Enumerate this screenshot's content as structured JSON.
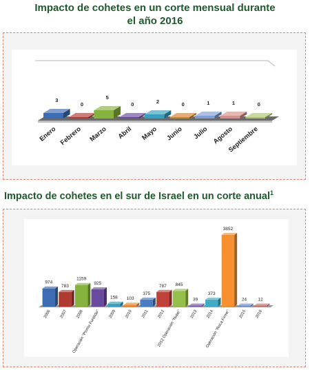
{
  "titles": {
    "monthly": "Impacto de cohetes en un corte mensual durante el año 2016",
    "monthly_line1": "Impacto de cohetes en un corte mensual durante",
    "monthly_line2": "el año 2016",
    "annual": "Impacto de cohetes en el sur de Israel en un corte anual",
    "annual_superscript": "1"
  },
  "chart_data": [
    {
      "type": "bar",
      "categories": [
        "Enero",
        "Febrero",
        "Marzo",
        "Abril",
        "Mayo",
        "Junio",
        "Julio",
        "Agosto",
        "Septiembre"
      ],
      "values": [
        3,
        0,
        5,
        0,
        2,
        0,
        1,
        1,
        0
      ],
      "colors": [
        "#3c6cb4",
        "#b03a32",
        "#86b23e",
        "#6a4a9c",
        "#36a0c0",
        "#d2832a",
        "#7f9fd6",
        "#d88f8a",
        "#a9c46f"
      ],
      "data_labels": true,
      "grid": false,
      "legend": "none"
    },
    {
      "type": "bar",
      "categories": [
        "2006",
        "2007",
        "2008",
        "Operación \"Plomo Fundido\"",
        "2009",
        "2010",
        "2011",
        "2012",
        "2012 Operación \"Nube\"",
        "2013",
        "2014",
        "Operación \"Roca Firme\"",
        "2015",
        "2016"
      ],
      "values": [
        974,
        783,
        1159,
        925,
        158,
        103,
        375,
        787,
        845,
        39,
        373,
        3852,
        24,
        12
      ],
      "colors": [
        "#3c6cb4",
        "#b03a32",
        "#86b23e",
        "#6a4a9c",
        "#36a0c0",
        "#f08a2e",
        "#4a7cc4",
        "#c0403a",
        "#94c04a",
        "#7a5aaa",
        "#40acc8",
        "#f7902e",
        "#6f8fcf",
        "#c8706a"
      ],
      "data_labels": true,
      "grid": false,
      "legend": "none"
    }
  ]
}
